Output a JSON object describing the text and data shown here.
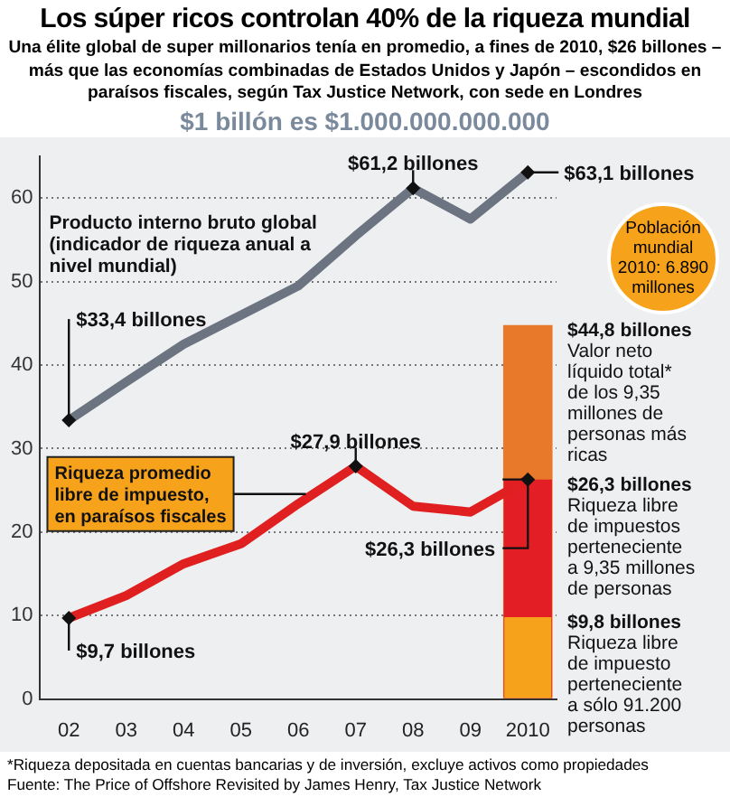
{
  "chart_data": {
    "type": "line",
    "title": "Los súper ricos controlan 40% de la riqueza mundial",
    "subtitle": "Una élite global de super millonarios tenía en promedio, a fines de 2010, $26 billones – más que las economías combinadas de Estados Unidos y Japón – escondidos en paraísos fiscales, según Tax Justice Network, con sede en Londres",
    "categories": [
      "02",
      "03",
      "04",
      "05",
      "06",
      "07",
      "08",
      "09",
      "2010"
    ],
    "series": [
      {
        "name": "Producto interno bruto global (indicador de riqueza anual a nivel mundial)",
        "color": "#6b7480",
        "values": [
          33.4,
          38,
          42.5,
          46,
          49.5,
          55.5,
          61.2,
          57.5,
          63.1
        ]
      },
      {
        "name": "Riqueza promedio libre de impuesto, en paraísos fiscales",
        "color": "#e02020",
        "values": [
          9.7,
          12.4,
          16.2,
          18.6,
          23.4,
          27.9,
          23.1,
          22.4,
          26.3
        ]
      },
      {
        "type": "bar",
        "color": "#e8782a",
        "values": [
          null,
          null,
          null,
          null,
          null,
          null,
          null,
          null,
          44.8
        ]
      },
      {
        "type": "bar",
        "color": "#e31e24",
        "values": [
          null,
          null,
          null,
          null,
          null,
          null,
          null,
          null,
          26.3
        ]
      },
      {
        "type": "bar",
        "color": "#f7a21b",
        "values": [
          null,
          null,
          null,
          null,
          null,
          null,
          null,
          null,
          9.8
        ]
      }
    ],
    "ylim": [
      0,
      65
    ],
    "yticks": [
      0,
      10,
      20,
      30,
      40,
      50,
      60
    ],
    "grid": "y",
    "legend": "left",
    "marker": "none",
    "line_style": "solid",
    "annotations": [
      "$1 billón es $1.000.000.000.000",
      "Población mundial 2010: 6.890 millones",
      "*Riqueza depositada en cuentas bancarias y de inversión, excluye activos como propiedades",
      "Fuente: The Price of Offshore Revisited by James Henry, Tax Justice Network",
      {
        "text": "$33,4 billones",
        "x": "02",
        "y": 33.4
      },
      {
        "text": "$61,2 billones",
        "x": "08",
        "y": 61.2
      },
      {
        "text": "$63,1 billones",
        "x": "2010",
        "y": 63.1
      },
      {
        "text": "$9,7 billones",
        "x": "02",
        "y": 9.7
      },
      {
        "text": "$27,9 billones",
        "x": "07",
        "y": 27.9
      },
      {
        "text": "$26,3 billones",
        "x": "2010",
        "y": 26.3
      },
      {
        "text": "$44,8 billones\nValor neto\nlíquido total*\nde los 9,35\nmillones de\npersonas más\nricas",
        "x": "2010",
        "y": 44.8
      },
      {
        "text": "$26,3 billones\nRiqueza libre\nde impuestos\nperteneciente\na 9,35 millones\nde personas",
        "x": "2010",
        "y": 26.3
      },
      {
        "text": "$9,8 billones\nRiqueza libre\nde impuesto\nperteneciente\na sólo 91.200\npersonas",
        "x": "2010",
        "y": 9.8
      }
    ]
  }
}
